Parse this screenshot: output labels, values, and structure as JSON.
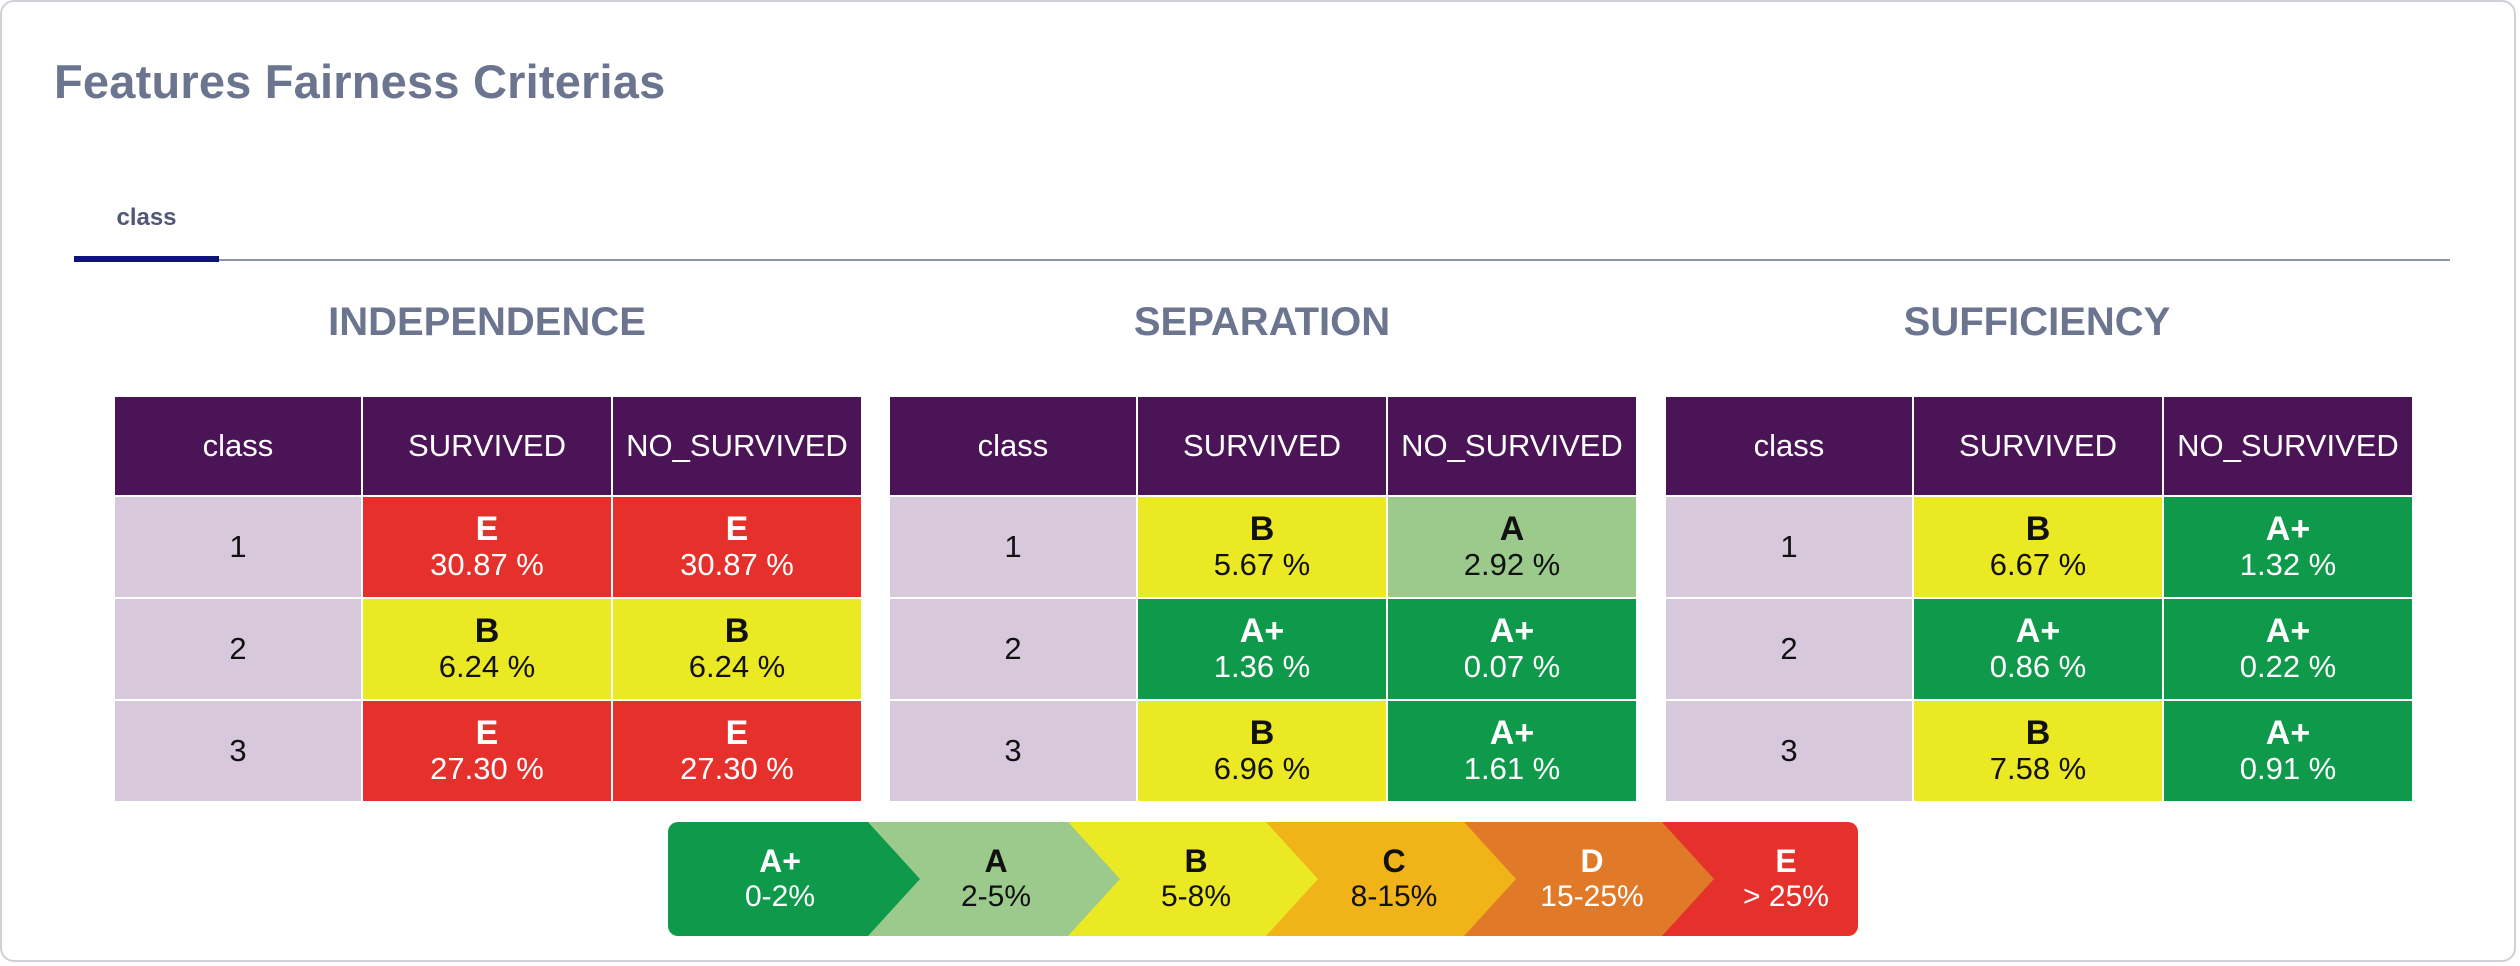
{
  "page": {
    "title": "Features Fairness Criterias"
  },
  "tabs": [
    {
      "label": "class",
      "active": true
    }
  ],
  "colors": {
    "A+": "#0e9a4a",
    "A": "#9bca8c",
    "B": "#ebe824",
    "C": "#f0b318",
    "D": "#e07a28",
    "E": "#e5302c",
    "header": "#4b1456",
    "class_cell": "#d7c8dc",
    "tab_active": "#0e1577"
  },
  "sections": [
    {
      "title": "INDEPENDENCE",
      "columns": [
        "class",
        "SURVIVED",
        "NO_SURVIVED"
      ],
      "rows": [
        {
          "class": "1",
          "cells": [
            {
              "grade": "E",
              "value": "30.87 %"
            },
            {
              "grade": "E",
              "value": "30.87 %"
            }
          ]
        },
        {
          "class": "2",
          "cells": [
            {
              "grade": "B",
              "value": "6.24 %"
            },
            {
              "grade": "B",
              "value": "6.24 %"
            }
          ]
        },
        {
          "class": "3",
          "cells": [
            {
              "grade": "E",
              "value": "27.30 %"
            },
            {
              "grade": "E",
              "value": "27.30 %"
            }
          ]
        }
      ]
    },
    {
      "title": "SEPARATION",
      "columns": [
        "class",
        "SURVIVED",
        "NO_SURVIVED"
      ],
      "rows": [
        {
          "class": "1",
          "cells": [
            {
              "grade": "B",
              "value": "5.67 %"
            },
            {
              "grade": "A",
              "value": "2.92 %"
            }
          ]
        },
        {
          "class": "2",
          "cells": [
            {
              "grade": "A+",
              "value": "1.36 %"
            },
            {
              "grade": "A+",
              "value": "0.07 %"
            }
          ]
        },
        {
          "class": "3",
          "cells": [
            {
              "grade": "B",
              "value": "6.96 %"
            },
            {
              "grade": "A+",
              "value": "1.61 %"
            }
          ]
        }
      ]
    },
    {
      "title": "SUFFICIENCY",
      "columns": [
        "class",
        "SURVIVED",
        "NO_SURVIVED"
      ],
      "rows": [
        {
          "class": "1",
          "cells": [
            {
              "grade": "B",
              "value": "6.67 %"
            },
            {
              "grade": "A+",
              "value": "1.32 %"
            }
          ]
        },
        {
          "class": "2",
          "cells": [
            {
              "grade": "A+",
              "value": "0.86 %"
            },
            {
              "grade": "A+",
              "value": "0.22 %"
            }
          ]
        },
        {
          "class": "3",
          "cells": [
            {
              "grade": "B",
              "value": "7.58 %"
            },
            {
              "grade": "A+",
              "value": "0.91 %"
            }
          ]
        }
      ]
    }
  ],
  "legend": [
    {
      "grade": "A+",
      "range": "0-2%"
    },
    {
      "grade": "A",
      "range": "2-5%"
    },
    {
      "grade": "B",
      "range": "5-8%"
    },
    {
      "grade": "C",
      "range": "8-15%"
    },
    {
      "grade": "D",
      "range": "15-25%"
    },
    {
      "grade": "E",
      "range": "> 25%"
    }
  ]
}
